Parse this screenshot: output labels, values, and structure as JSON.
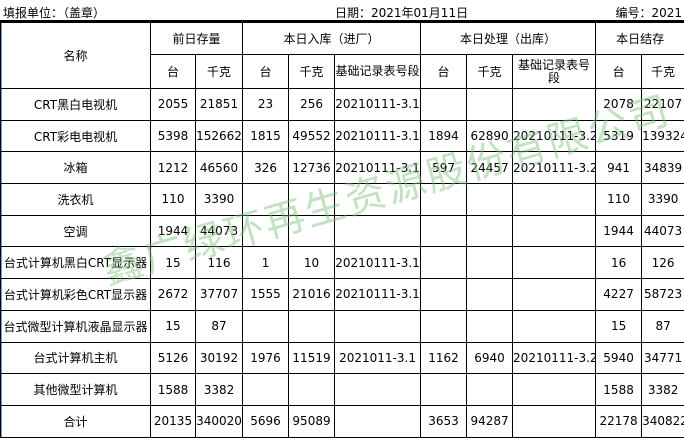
{
  "header": {
    "unit_label": "填报单位：（盖章）",
    "date_label": "日期：2021年01月11日",
    "number_label": "编号：2021"
  },
  "columns": {
    "name": "名称",
    "group_prev": "前日存量",
    "group_in": "本日入库（进厂）",
    "group_out": "本日处理（出库）",
    "group_end": "本日结存",
    "unit_tai": "台",
    "unit_kg": "千克",
    "record_no": "基础记录表号段"
  },
  "rows": [
    {
      "name": "CRT黑白电视机",
      "prev_tai": "2055",
      "prev_kg": "21851",
      "in_tai": "23",
      "in_kg": "256",
      "in_rec": "20210111-3.1",
      "out_tai": "",
      "out_kg": "",
      "out_rec": "",
      "end_tai": "2078",
      "end_kg": "22107"
    },
    {
      "name": "CRT彩电电视机",
      "prev_tai": "5398",
      "prev_kg": "152662",
      "in_tai": "1815",
      "in_kg": "49552",
      "in_rec": "20210111-3.1",
      "out_tai": "1894",
      "out_kg": "62890",
      "out_rec": "20210111-3.2",
      "end_tai": "5319",
      "end_kg": "139324"
    },
    {
      "name": "冰箱",
      "prev_tai": "1212",
      "prev_kg": "46560",
      "in_tai": "326",
      "in_kg": "12736",
      "in_rec": "20210111-3.1",
      "out_tai": "597",
      "out_kg": "24457",
      "out_rec": "20210111-3.2",
      "end_tai": "941",
      "end_kg": "34839"
    },
    {
      "name": "洗衣机",
      "prev_tai": "110",
      "prev_kg": "3390",
      "in_tai": "",
      "in_kg": "",
      "in_rec": "",
      "out_tai": "",
      "out_kg": "",
      "out_rec": "",
      "end_tai": "110",
      "end_kg": "3390"
    },
    {
      "name": "空调",
      "prev_tai": "1944",
      "prev_kg": "44073",
      "in_tai": "",
      "in_kg": "",
      "in_rec": "",
      "out_tai": "",
      "out_kg": "",
      "out_rec": "",
      "end_tai": "1944",
      "end_kg": "44073"
    },
    {
      "name": "台式计算机黑白CRT显示器",
      "prev_tai": "15",
      "prev_kg": "116",
      "in_tai": "1",
      "in_kg": "10",
      "in_rec": "20210111-3.1",
      "out_tai": "",
      "out_kg": "",
      "out_rec": "",
      "end_tai": "16",
      "end_kg": "126"
    },
    {
      "name": "台式计算机彩色CRT显示器",
      "prev_tai": "2672",
      "prev_kg": "37707",
      "in_tai": "1555",
      "in_kg": "21016",
      "in_rec": "20210111-3.1",
      "out_tai": "",
      "out_kg": "",
      "out_rec": "",
      "end_tai": "4227",
      "end_kg": "58723"
    },
    {
      "name": "台式微型计算机液晶显示器",
      "prev_tai": "15",
      "prev_kg": "87",
      "in_tai": "",
      "in_kg": "",
      "in_rec": "",
      "out_tai": "",
      "out_kg": "",
      "out_rec": "",
      "end_tai": "15",
      "end_kg": "87"
    },
    {
      "name": "台式计算机主机",
      "prev_tai": "5126",
      "prev_kg": "30192",
      "in_tai": "1976",
      "in_kg": "11519",
      "in_rec": "2021011-3.1",
      "out_tai": "1162",
      "out_kg": "6940",
      "out_rec": "20210111-3.2",
      "end_tai": "5940",
      "end_kg": "34771"
    },
    {
      "name": "其他微型计算机",
      "prev_tai": "1588",
      "prev_kg": "3382",
      "in_tai": "",
      "in_kg": "",
      "in_rec": "",
      "out_tai": "",
      "out_kg": "",
      "out_rec": "",
      "end_tai": "1588",
      "end_kg": "3382"
    },
    {
      "name": "合计",
      "prev_tai": "20135",
      "prev_kg": "340020",
      "in_tai": "5696",
      "in_kg": "95089",
      "in_rec": "",
      "out_tai": "3653",
      "out_kg": "94287",
      "out_rec": "",
      "end_tai": "22178",
      "end_kg": "340822"
    }
  ],
  "watermark": "鑫广绿环再生资源股份有限公司",
  "colors": {
    "watermark": "#78be78",
    "sheet_edge": "#7a9cc6"
  }
}
